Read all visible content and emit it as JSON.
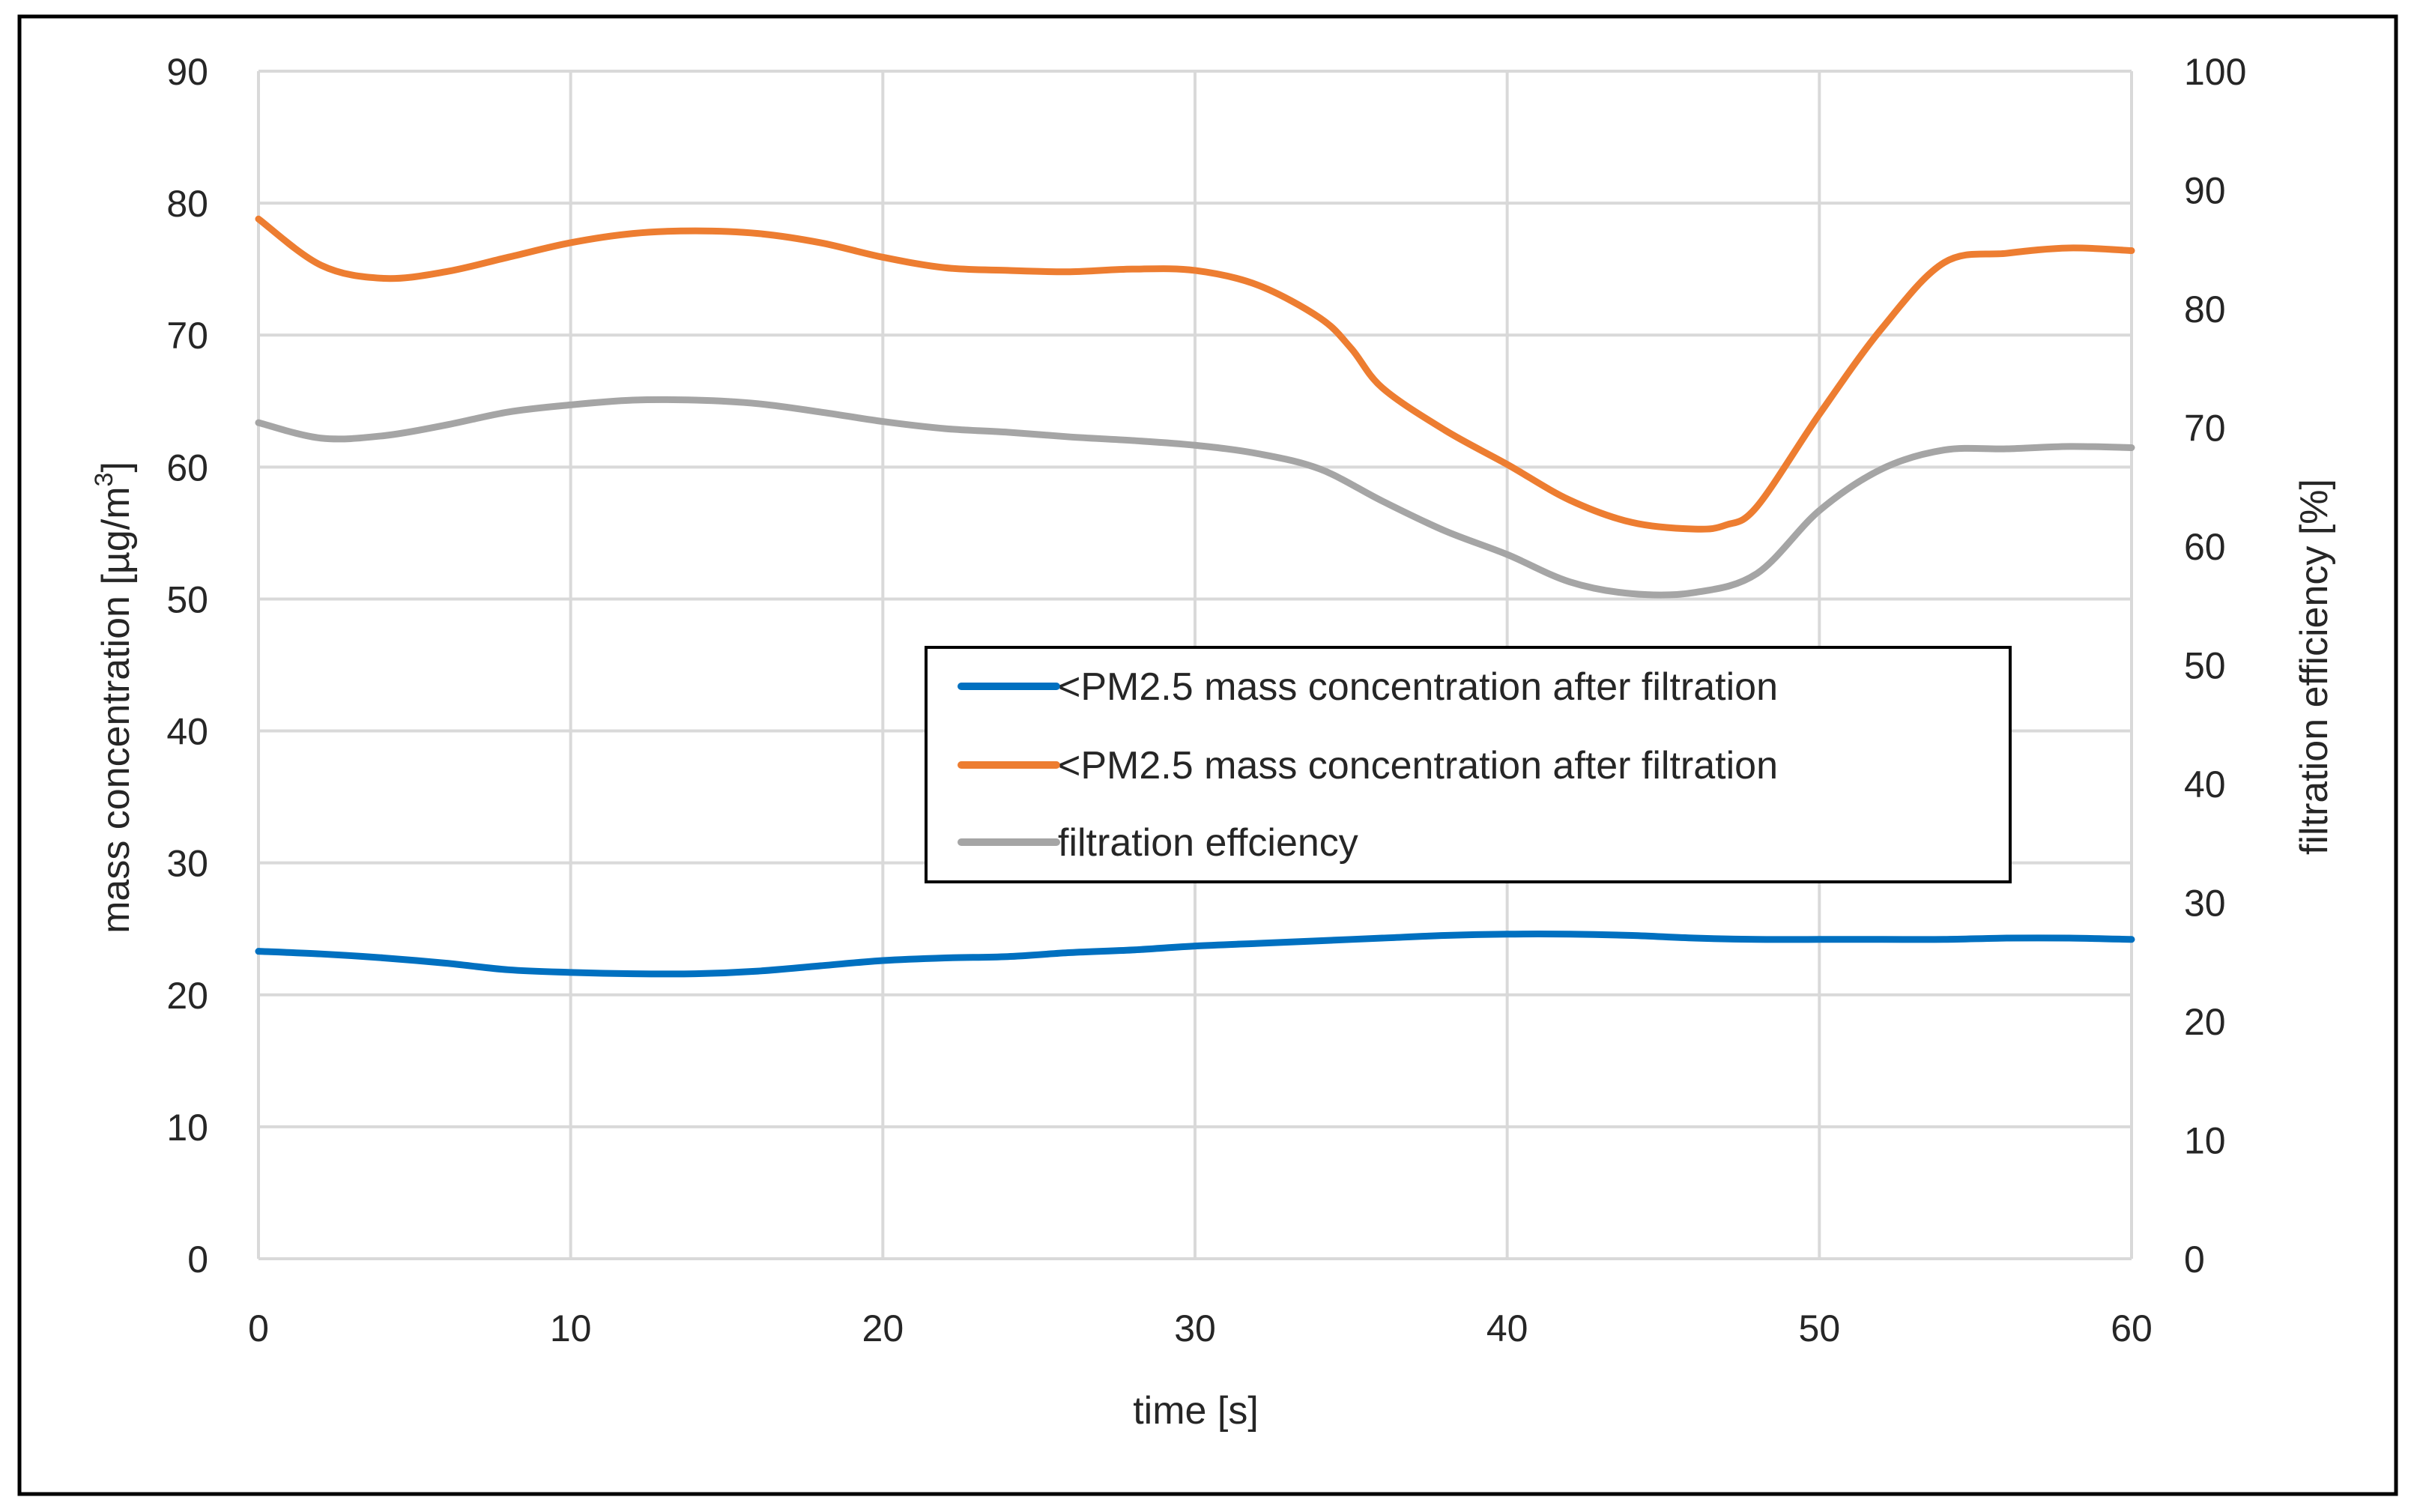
{
  "chart_data": {
    "type": "line",
    "title": "",
    "xlabel": "time [s]",
    "ylabel_left_prefix": "mass concentration [µg/m",
    "ylabel_left_sup": "3",
    "ylabel_left_suffix": "]",
    "ylabel_right": "filtration efficiency [%]",
    "xlim": [
      0,
      60
    ],
    "ylim_left": [
      0,
      90
    ],
    "ylim_right": [
      0,
      100
    ],
    "x_ticks": [
      "0",
      "10",
      "20",
      "30",
      "40",
      "50",
      "60"
    ],
    "y_left_ticks": [
      "0",
      "10",
      "20",
      "30",
      "40",
      "50",
      "60",
      "70",
      "80",
      "90"
    ],
    "y_right_ticks": [
      "0",
      "10",
      "20",
      "30",
      "40",
      "50",
      "60",
      "70",
      "80",
      "90",
      "100"
    ],
    "grid": true,
    "legend_position": "center-right",
    "series": [
      {
        "name": "<PM2.5 mass concentration after filtration",
        "axis": "left",
        "color": "#0070c0",
        "x": [
          0,
          2,
          4,
          6,
          8,
          10,
          12,
          14,
          16,
          18,
          20,
          22,
          24,
          26,
          28,
          30,
          32,
          34,
          36,
          38,
          40,
          42,
          44,
          46,
          48,
          50,
          52,
          54,
          56,
          58,
          60
        ],
        "values": [
          23.3,
          23.1,
          22.8,
          22.4,
          21.9,
          21.7,
          21.6,
          21.6,
          21.8,
          22.2,
          22.6,
          22.8,
          22.9,
          23.2,
          23.4,
          23.7,
          23.9,
          24.1,
          24.3,
          24.5,
          24.6,
          24.6,
          24.5,
          24.3,
          24.2,
          24.2,
          24.2,
          24.2,
          24.3,
          24.3,
          24.2
        ]
      },
      {
        "name": "<PM2.5 mass concentration after filtration",
        "axis": "left",
        "color": "#ed7d31",
        "x": [
          0,
          2,
          4,
          6,
          8,
          10,
          12,
          14,
          16,
          18,
          20,
          22,
          24,
          26,
          28,
          30,
          32,
          34,
          35,
          36,
          38,
          40,
          42,
          44,
          46,
          47,
          48,
          50,
          52,
          54,
          56,
          58,
          60
        ],
        "values": [
          78.8,
          75.3,
          74.3,
          74.8,
          75.9,
          77.0,
          77.7,
          77.9,
          77.7,
          77.0,
          75.9,
          75.1,
          74.9,
          74.8,
          75.0,
          74.9,
          73.8,
          71.3,
          69.0,
          66.0,
          62.8,
          60.2,
          57.5,
          55.8,
          55.3,
          55.6,
          57.0,
          64.0,
          70.5,
          75.5,
          76.2,
          76.6,
          76.4
        ]
      },
      {
        "name": "filtration effciency",
        "axis": "right",
        "color": "#a5a5a5",
        "x": [
          0,
          2,
          4,
          6,
          8,
          10,
          12,
          14,
          16,
          18,
          20,
          22,
          24,
          26,
          28,
          30,
          32,
          34,
          36,
          38,
          40,
          42,
          44,
          46,
          48,
          50,
          52,
          54,
          56,
          58,
          60
        ],
        "values": [
          70.4,
          69.1,
          69.3,
          70.2,
          71.3,
          71.9,
          72.3,
          72.3,
          72.0,
          71.3,
          70.5,
          69.9,
          69.6,
          69.2,
          68.9,
          68.5,
          67.8,
          66.5,
          63.8,
          61.3,
          59.3,
          57.0,
          56.0,
          56.1,
          57.7,
          63.0,
          66.5,
          68.1,
          68.2,
          68.4,
          68.3
        ]
      }
    ]
  }
}
